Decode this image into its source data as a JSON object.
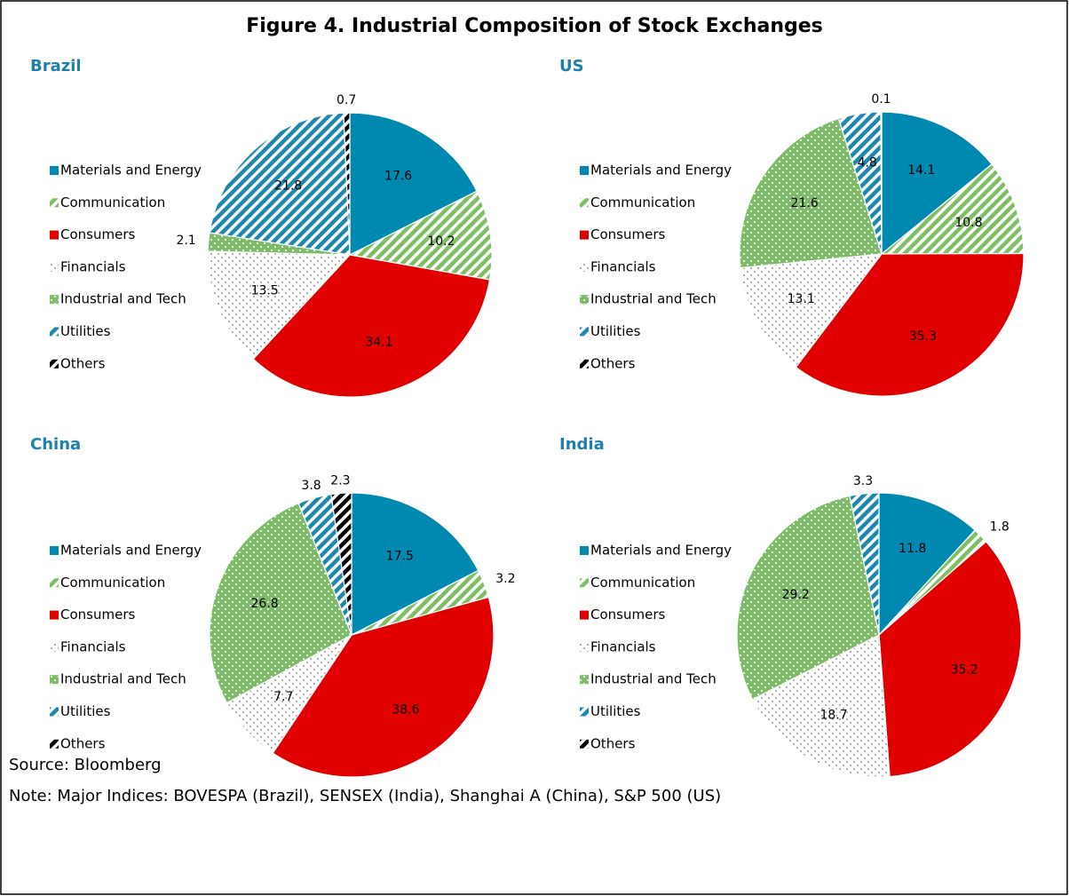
{
  "title": "Figure 4. Industrial Composition of Stock Exchanges",
  "source": "Source: Bloomberg",
  "note": "Note: Major Indices: BOVESPA (Brazil), SENSEX (India), Shanghai A (China), S&P 500 (US)",
  "chart_data": [
    {
      "type": "pie",
      "title": "Brazil",
      "categories": [
        "Materials and Energy",
        "Communication",
        "Consumers",
        "Financials",
        "Industrial and Tech",
        "Utilities",
        "Others"
      ],
      "values": [
        17.6,
        10.2,
        34.1,
        13.5,
        2.1,
        21.8,
        0.7
      ],
      "colors": [
        "#0089b0",
        "#7fbf63",
        "#e00000",
        "#a6a6a6",
        "#7fba6a",
        "#1c88b0",
        "#000000"
      ],
      "patterns": [
        "solid",
        "stripes",
        "solid",
        "dots",
        "white-dots",
        "stripes",
        "stripes"
      ]
    },
    {
      "type": "pie",
      "title": "US",
      "categories": [
        "Materials and Energy",
        "Communication",
        "Consumers",
        "Financials",
        "Industrial and Tech",
        "Utilities",
        "Others"
      ],
      "values": [
        14.1,
        10.8,
        35.3,
        13.1,
        21.6,
        4.8,
        0.1
      ],
      "colors": [
        "#0089b0",
        "#7fbf63",
        "#e00000",
        "#a6a6a6",
        "#7fba6a",
        "#1c88b0",
        "#000000"
      ],
      "patterns": [
        "solid",
        "stripes",
        "solid",
        "dots",
        "white-dots",
        "stripes",
        "stripes"
      ]
    },
    {
      "type": "pie",
      "title": "China",
      "categories": [
        "Materials and Energy",
        "Communication",
        "Consumers",
        "Financials",
        "Industrial and Tech",
        "Utilities",
        "Others"
      ],
      "values": [
        17.5,
        3.2,
        38.6,
        7.7,
        26.8,
        3.8,
        2.3
      ],
      "colors": [
        "#0089b0",
        "#7fbf63",
        "#e00000",
        "#a6a6a6",
        "#7fba6a",
        "#1c88b0",
        "#000000"
      ],
      "patterns": [
        "solid",
        "stripes",
        "solid",
        "dots",
        "white-dots",
        "stripes",
        "stripes"
      ]
    },
    {
      "type": "pie",
      "title": "India",
      "categories": [
        "Materials and Energy",
        "Communication",
        "Consumers",
        "Financials",
        "Industrial and Tech",
        "Utilities",
        "Others"
      ],
      "values": [
        11.8,
        1.8,
        35.2,
        18.7,
        29.2,
        3.3,
        null
      ],
      "colors": [
        "#0089b0",
        "#7fbf63",
        "#e00000",
        "#a6a6a6",
        "#7fba6a",
        "#1c88b0",
        "#000000"
      ],
      "patterns": [
        "solid",
        "stripes",
        "solid",
        "dots",
        "white-dots",
        "stripes",
        "stripes"
      ]
    }
  ]
}
